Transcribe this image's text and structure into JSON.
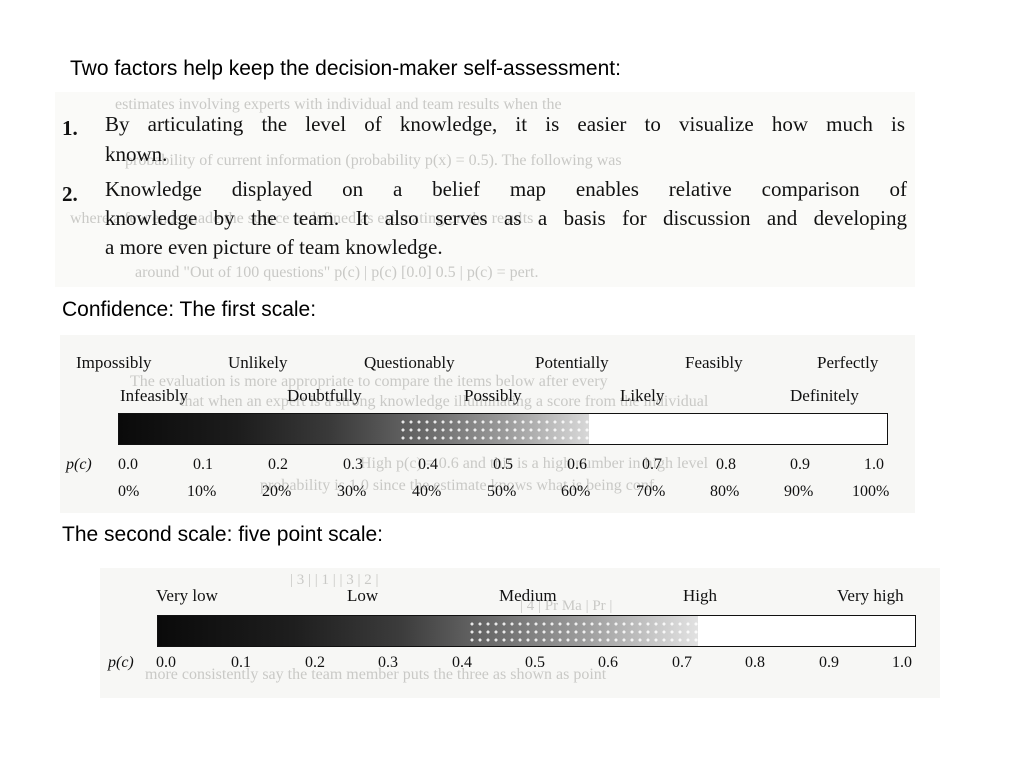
{
  "headings": {
    "intro": "Two factors help keep the decision-maker self-assessment:",
    "first_scale": "Confidence:  The first scale:",
    "second_scale": "The second scale: five point scale:"
  },
  "factors": [
    {
      "number": "1.",
      "lines": [
        "By articulating the level of knowledge, it is easier to visualize how much is",
        "known."
      ]
    },
    {
      "number": "2.",
      "lines": [
        "Knowledge displayed on a belief map enables relative comparison of",
        "knowledge by the team. It also serves as a basis for discussion and developing",
        "a more even picture of team knowledge."
      ]
    }
  ],
  "first_scale": {
    "upper_labels": [
      "Impossibly",
      "Unlikely",
      "Questionably",
      "Potentially",
      "Feasibly",
      "Perfectly"
    ],
    "lower_labels": [
      "Infeasibly",
      "Doubtfully",
      "Possibly",
      "Likely",
      "Definitely"
    ],
    "axis_label": "p(c)",
    "probabilities": [
      "0.0",
      "0.1",
      "0.2",
      "0.3",
      "0.4",
      "0.5",
      "0.6",
      "0.7",
      "0.8",
      "0.9",
      "1.0"
    ],
    "percents": [
      "0%",
      "10%",
      "20%",
      "30%",
      "40%",
      "50%",
      "60%",
      "70%",
      "80%",
      "90%",
      "100%"
    ]
  },
  "second_scale": {
    "labels": [
      "Very low",
      "Low",
      "Medium",
      "High",
      "Very high"
    ],
    "axis_label": "p(c)",
    "probabilities": [
      "0.0",
      "0.1",
      "0.2",
      "0.3",
      "0.4",
      "0.5",
      "0.6",
      "0.7",
      "0.8",
      "0.9",
      "1.0"
    ]
  },
  "colors": {
    "ink": "#111111",
    "scan_background": "#f7f7f5",
    "ghost_text": "#c9c9c6"
  }
}
